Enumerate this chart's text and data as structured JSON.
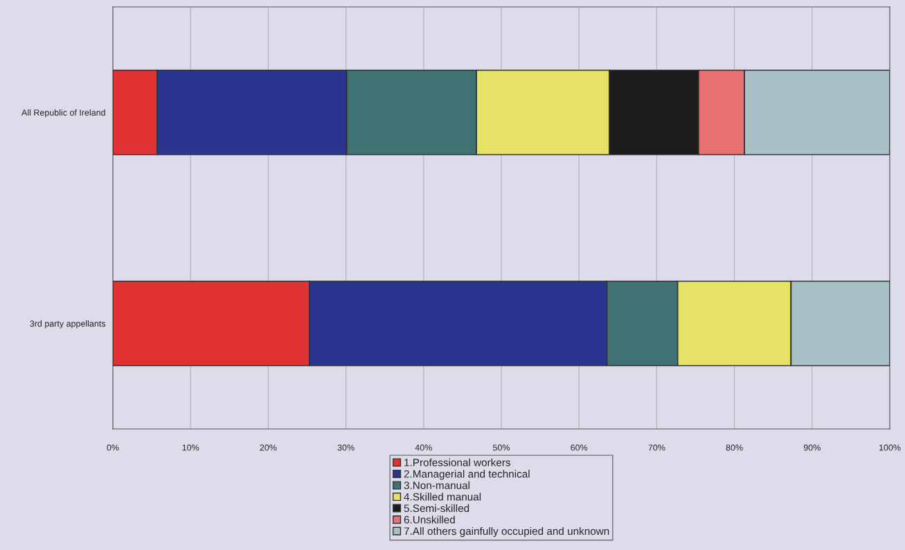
{
  "chart_data": {
    "type": "bar",
    "orientation": "horizontal",
    "stacked": true,
    "categories": [
      "All Republic of Ireland",
      "3rd party appellants"
    ],
    "series": [
      {
        "name": "1.Professional workers",
        "color": "#e03232",
        "values": [
          5.7,
          25.3
        ]
      },
      {
        "name": "2.Managerial and technical",
        "color": "#2b3590",
        "values": [
          24.4,
          38.3
        ]
      },
      {
        "name": "3.Non-manual",
        "color": "#3f7272",
        "values": [
          16.7,
          9.1
        ]
      },
      {
        "name": "4.Skilled manual",
        "color": "#e6e266",
        "values": [
          17.1,
          14.6
        ]
      },
      {
        "name": "5.Semi-skilled",
        "color": "#1c1c1c",
        "values": [
          11.5,
          0
        ]
      },
      {
        "name": "6.Unskilled",
        "color": "#e87272",
        "values": [
          5.9,
          0
        ]
      },
      {
        "name": "7.All others gainfully occupied and unknown",
        "color": "#a8c0c6",
        "values": [
          18.7,
          12.7
        ]
      }
    ],
    "xlim": [
      0,
      100
    ],
    "xticks": [
      {
        "value": 0,
        "label": "0%"
      },
      {
        "value": 10,
        "label": "10%"
      },
      {
        "value": 20,
        "label": "20%"
      },
      {
        "value": 30,
        "label": "30%"
      },
      {
        "value": 40,
        "label": "40%"
      },
      {
        "value": 50,
        "label": "50%"
      },
      {
        "value": 60,
        "label": "60%"
      },
      {
        "value": 70,
        "label": "70%"
      },
      {
        "value": 80,
        "label": "80%"
      },
      {
        "value": 90,
        "label": "90%"
      },
      {
        "value": 100,
        "label": "100%"
      }
    ],
    "grid": "x",
    "legend": "bottom"
  }
}
